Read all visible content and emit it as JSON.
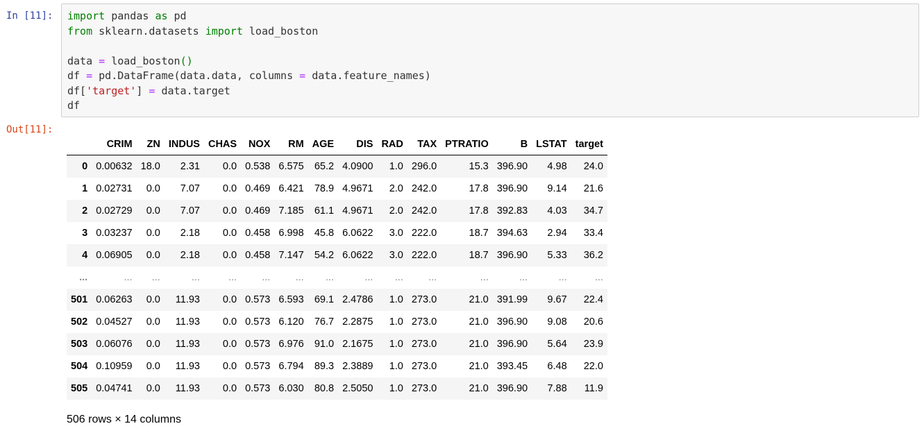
{
  "input_prompt": "In [11]:",
  "output_prompt": "Out[11]:",
  "code": {
    "l1": {
      "kw1": "import",
      "mid": " pandas ",
      "kw2": "as",
      "rest": " pd"
    },
    "l2": {
      "kw1": "from",
      "mid": " sklearn.datasets ",
      "kw2": "import",
      "rest": " load_boston"
    },
    "l4": {
      "a": "data ",
      "eq": "=",
      "b": " load_boston",
      "paren": "()"
    },
    "l5": {
      "a": "df ",
      "eq": "=",
      "b": " pd.DataFrame(data.data, columns ",
      "eq2": "=",
      "c": " data.feature_names)"
    },
    "l6": {
      "a": "df[",
      "str": "'target'",
      "b": "] ",
      "eq": "=",
      "c": " data.target"
    },
    "l7": "df"
  },
  "table": {
    "columns": [
      "CRIM",
      "ZN",
      "INDUS",
      "CHAS",
      "NOX",
      "RM",
      "AGE",
      "DIS",
      "RAD",
      "TAX",
      "PTRATIO",
      "B",
      "LSTAT",
      "target"
    ],
    "rows": [
      {
        "index": "0",
        "values": [
          "0.00632",
          "18.0",
          "2.31",
          "0.0",
          "0.538",
          "6.575",
          "65.2",
          "4.0900",
          "1.0",
          "296.0",
          "15.3",
          "396.90",
          "4.98",
          "24.0"
        ]
      },
      {
        "index": "1",
        "values": [
          "0.02731",
          "0.0",
          "7.07",
          "0.0",
          "0.469",
          "6.421",
          "78.9",
          "4.9671",
          "2.0",
          "242.0",
          "17.8",
          "396.90",
          "9.14",
          "21.6"
        ]
      },
      {
        "index": "2",
        "values": [
          "0.02729",
          "0.0",
          "7.07",
          "0.0",
          "0.469",
          "7.185",
          "61.1",
          "4.9671",
          "2.0",
          "242.0",
          "17.8",
          "392.83",
          "4.03",
          "34.7"
        ]
      },
      {
        "index": "3",
        "values": [
          "0.03237",
          "0.0",
          "2.18",
          "0.0",
          "0.458",
          "6.998",
          "45.8",
          "6.0622",
          "3.0",
          "222.0",
          "18.7",
          "394.63",
          "2.94",
          "33.4"
        ]
      },
      {
        "index": "4",
        "values": [
          "0.06905",
          "0.0",
          "2.18",
          "0.0",
          "0.458",
          "7.147",
          "54.2",
          "6.0622",
          "3.0",
          "222.0",
          "18.7",
          "396.90",
          "5.33",
          "36.2"
        ]
      },
      {
        "index": "...",
        "values": [
          "...",
          "...",
          "...",
          "...",
          "...",
          "...",
          "...",
          "...",
          "...",
          "...",
          "...",
          "...",
          "...",
          "..."
        ]
      },
      {
        "index": "501",
        "values": [
          "0.06263",
          "0.0",
          "11.93",
          "0.0",
          "0.573",
          "6.593",
          "69.1",
          "2.4786",
          "1.0",
          "273.0",
          "21.0",
          "391.99",
          "9.67",
          "22.4"
        ]
      },
      {
        "index": "502",
        "values": [
          "0.04527",
          "0.0",
          "11.93",
          "0.0",
          "0.573",
          "6.120",
          "76.7",
          "2.2875",
          "1.0",
          "273.0",
          "21.0",
          "396.90",
          "9.08",
          "20.6"
        ]
      },
      {
        "index": "503",
        "values": [
          "0.06076",
          "0.0",
          "11.93",
          "0.0",
          "0.573",
          "6.976",
          "91.0",
          "2.1675",
          "1.0",
          "273.0",
          "21.0",
          "396.90",
          "5.64",
          "23.9"
        ]
      },
      {
        "index": "504",
        "values": [
          "0.10959",
          "0.0",
          "11.93",
          "0.0",
          "0.573",
          "6.794",
          "89.3",
          "2.3889",
          "1.0",
          "273.0",
          "21.0",
          "393.45",
          "6.48",
          "22.0"
        ]
      },
      {
        "index": "505",
        "values": [
          "0.04741",
          "0.0",
          "11.93",
          "0.0",
          "0.573",
          "6.030",
          "80.8",
          "2.5050",
          "1.0",
          "273.0",
          "21.0",
          "396.90",
          "7.88",
          "11.9"
        ]
      }
    ]
  },
  "shape_text": "506 rows × 14 columns"
}
